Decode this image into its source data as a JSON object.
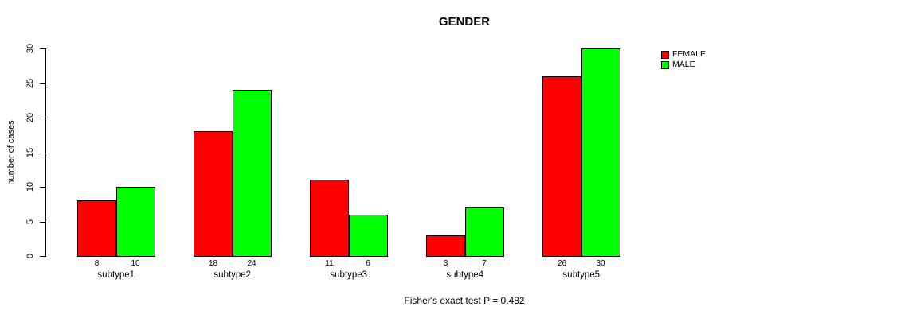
{
  "chart_data": {
    "type": "bar",
    "title": "GENDER",
    "xlabel": "",
    "ylabel": "number of cases",
    "caption": "Fisher's exact test P = 0.482",
    "categories": [
      "subtype1",
      "subtype2",
      "subtype3",
      "subtype4",
      "subtype5"
    ],
    "series": [
      {
        "name": "FEMALE",
        "color": "#ff0000",
        "values": [
          8,
          18,
          11,
          3,
          26
        ]
      },
      {
        "name": "MALE",
        "color": "#00ff00",
        "values": [
          10,
          24,
          6,
          7,
          30
        ]
      }
    ],
    "yticks": [
      0,
      5,
      10,
      15,
      20,
      25,
      30
    ],
    "ylim": [
      0,
      30
    ],
    "grid": false,
    "legend_position": "top-right",
    "bar_value_labels_shown": true,
    "axis_color": "#000000",
    "bar_border_color": "#000000",
    "background_color": "#ffffff"
  }
}
